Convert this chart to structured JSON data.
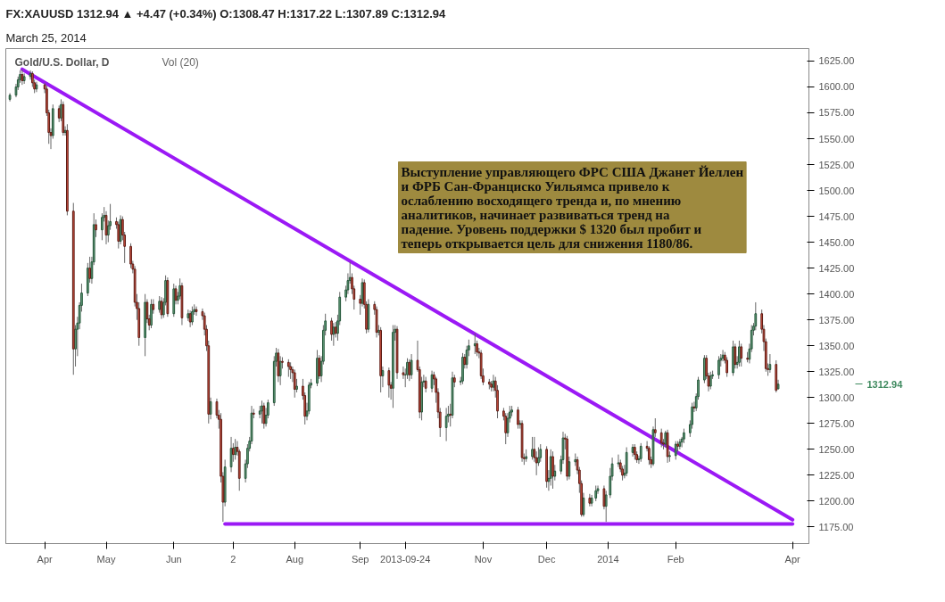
{
  "chart_data": {
    "type": "candlestick",
    "title": "Gold/U.S. Dollar, D",
    "subtitle": "March 25, 2014",
    "annotations": [
      "FX:XAUUSD  1312.94 ▲ +4.47 (+0.34%)  O:1308.47  H:1317.22  L:1307.89  C:1312.94",
      "Vol (20)",
      "Выступление управляющего ФРС США Джанет Йеллен и ФРБ Сан-Франциско Уильямса привело к ослаблению восходящего тренда и, по мнению аналитиков, начинает развиваться тренд на падение. Уровень поддержки $ 1320 был пробит и теперь открывается цель для снижения 1180/86.",
      "1312.94"
    ],
    "x": [
      "2013-03-15",
      "2013-03-18",
      "2013-03-19",
      "2013-03-20",
      "2013-03-21",
      "2013-03-22",
      "2013-03-25",
      "2013-03-26",
      "2013-03-27",
      "2013-03-28",
      "2013-04-01",
      "2013-04-02",
      "2013-04-03",
      "2013-04-04",
      "2013-04-05",
      "2013-04-08",
      "2013-04-09",
      "2013-04-10",
      "2013-04-11",
      "2013-04-12",
      "2013-04-15",
      "2013-04-16",
      "2013-04-17",
      "2013-04-18",
      "2013-04-19",
      "2013-04-22",
      "2013-04-23",
      "2013-04-24",
      "2013-04-25",
      "2013-04-26",
      "2013-04-29",
      "2013-04-30",
      "2013-05-01",
      "2013-05-02",
      "2013-05-03",
      "2013-05-06",
      "2013-05-07",
      "2013-05-08",
      "2013-05-09",
      "2013-05-10",
      "2013-05-13",
      "2013-05-14",
      "2013-05-15",
      "2013-05-16",
      "2013-05-17",
      "2013-05-20",
      "2013-05-21",
      "2013-05-22",
      "2013-05-23",
      "2013-05-24",
      "2013-05-27",
      "2013-05-28",
      "2013-05-29",
      "2013-05-30",
      "2013-05-31",
      "2013-06-03",
      "2013-06-04",
      "2013-06-05",
      "2013-06-06",
      "2013-06-07",
      "2013-06-10",
      "2013-06-11",
      "2013-06-12",
      "2013-06-13",
      "2013-06-14",
      "2013-06-17",
      "2013-06-18",
      "2013-06-19",
      "2013-06-20",
      "2013-06-21",
      "2013-06-24",
      "2013-06-25",
      "2013-06-26",
      "2013-06-27",
      "2013-06-28",
      "2013-07-01",
      "2013-07-02",
      "2013-07-03",
      "2013-07-04",
      "2013-07-05",
      "2013-07-08",
      "2013-07-09",
      "2013-07-10",
      "2013-07-11",
      "2013-07-12",
      "2013-07-15",
      "2013-07-16",
      "2013-07-17",
      "2013-07-18",
      "2013-07-19",
      "2013-07-22",
      "2013-07-23",
      "2013-07-24",
      "2013-07-25",
      "2013-07-26",
      "2013-07-29",
      "2013-07-30",
      "2013-07-31",
      "2013-08-01",
      "2013-08-02",
      "2013-08-05",
      "2013-08-06",
      "2013-08-07",
      "2013-08-08",
      "2013-08-09",
      "2013-08-12",
      "2013-08-13",
      "2013-08-14",
      "2013-08-15",
      "2013-08-16",
      "2013-08-19",
      "2013-08-20",
      "2013-08-21",
      "2013-08-22",
      "2013-08-23",
      "2013-08-26",
      "2013-08-27",
      "2013-08-28",
      "2013-08-29",
      "2013-08-30",
      "2013-09-02",
      "2013-09-03",
      "2013-09-04",
      "2013-09-05",
      "2013-09-06",
      "2013-09-09",
      "2013-09-10",
      "2013-09-11",
      "2013-09-12",
      "2013-09-13",
      "2013-09-16",
      "2013-09-17",
      "2013-09-18",
      "2013-09-19",
      "2013-09-20",
      "2013-09-23",
      "2013-09-24",
      "2013-09-25",
      "2013-09-26",
      "2013-09-27",
      "2013-09-30",
      "2013-10-01",
      "2013-10-02",
      "2013-10-03",
      "2013-10-04",
      "2013-10-07",
      "2013-10-08",
      "2013-10-09",
      "2013-10-10",
      "2013-10-11",
      "2013-10-14",
      "2013-10-15",
      "2013-10-16",
      "2013-10-17",
      "2013-10-18",
      "2013-10-21",
      "2013-10-22",
      "2013-10-23",
      "2013-10-24",
      "2013-10-25",
      "2013-10-28",
      "2013-10-29",
      "2013-10-30",
      "2013-10-31",
      "2013-11-01",
      "2013-11-04",
      "2013-11-05",
      "2013-11-06",
      "2013-11-07",
      "2013-11-08",
      "2013-11-11",
      "2013-11-12",
      "2013-11-13",
      "2013-11-14",
      "2013-11-15",
      "2013-11-18",
      "2013-11-19",
      "2013-11-20",
      "2013-11-21",
      "2013-11-22",
      "2013-11-25",
      "2013-11-26",
      "2013-11-27",
      "2013-11-28",
      "2013-11-29",
      "2013-12-02",
      "2013-12-03",
      "2013-12-04",
      "2013-12-05",
      "2013-12-06",
      "2013-12-09",
      "2013-12-10",
      "2013-12-11",
      "2013-12-12",
      "2013-12-13",
      "2013-12-16",
      "2013-12-17",
      "2013-12-18",
      "2013-12-19",
      "2013-12-20",
      "2013-12-23",
      "2013-12-24",
      "2013-12-26",
      "2013-12-27",
      "2013-12-30",
      "2013-12-31",
      "2014-01-02",
      "2014-01-03",
      "2014-01-06",
      "2014-01-07",
      "2014-01-08",
      "2014-01-09",
      "2014-01-10",
      "2014-01-13",
      "2014-01-14",
      "2014-01-15",
      "2014-01-16",
      "2014-01-17",
      "2014-01-20",
      "2014-01-21",
      "2014-01-22",
      "2014-01-23",
      "2014-01-24",
      "2014-01-27",
      "2014-01-28",
      "2014-01-29",
      "2014-01-30",
      "2014-01-31",
      "2014-02-03",
      "2014-02-04",
      "2014-02-05",
      "2014-02-06",
      "2014-02-07",
      "2014-02-10",
      "2014-02-11",
      "2014-02-12",
      "2014-02-13",
      "2014-02-14",
      "2014-02-17",
      "2014-02-18",
      "2014-02-19",
      "2014-02-20",
      "2014-02-21",
      "2014-02-24",
      "2014-02-25",
      "2014-02-26",
      "2014-02-27",
      "2014-02-28",
      "2014-03-03",
      "2014-03-04",
      "2014-03-05",
      "2014-03-06",
      "2014-03-07",
      "2014-03-10",
      "2014-03-11",
      "2014-03-12",
      "2014-03-13",
      "2014-03-14",
      "2014-03-17",
      "2014-03-18",
      "2014-03-19",
      "2014-03-20",
      "2014-03-21",
      "2014-03-24",
      "2014-03-25"
    ],
    "ohlc": [
      [
        1588,
        1594,
        1586,
        1592
      ],
      [
        1592,
        1603,
        1590,
        1600
      ],
      [
        1600,
        1610,
        1597,
        1607
      ],
      [
        1607,
        1616,
        1604,
        1612
      ],
      [
        1612,
        1617,
        1602,
        1606
      ],
      [
        1606,
        1613,
        1603,
        1610
      ],
      [
        1610,
        1616,
        1607,
        1613
      ],
      [
        1613,
        1615,
        1600,
        1604
      ],
      [
        1604,
        1607,
        1594,
        1598
      ],
      [
        1598,
        1605,
        1595,
        1602
      ],
      [
        1602,
        1604,
        1594,
        1598
      ],
      [
        1598,
        1601,
        1572,
        1575
      ],
      [
        1575,
        1578,
        1545,
        1556
      ],
      [
        1556,
        1560,
        1540,
        1553
      ],
      [
        1553,
        1583,
        1550,
        1579
      ],
      [
        1579,
        1582,
        1566,
        1570
      ],
      [
        1570,
        1588,
        1567,
        1583
      ],
      [
        1583,
        1586,
        1553,
        1556
      ],
      [
        1556,
        1562,
        1553,
        1558
      ],
      [
        1558,
        1564,
        1476,
        1480
      ],
      [
        1480,
        1488,
        1322,
        1347
      ],
      [
        1347,
        1370,
        1330,
        1366
      ],
      [
        1366,
        1378,
        1340,
        1372
      ],
      [
        1372,
        1392,
        1366,
        1389
      ],
      [
        1389,
        1410,
        1383,
        1401
      ],
      [
        1401,
        1430,
        1398,
        1425
      ],
      [
        1425,
        1436,
        1411,
        1415
      ],
      [
        1415,
        1436,
        1410,
        1431
      ],
      [
        1431,
        1478,
        1428,
        1467
      ],
      [
        1467,
        1472,
        1455,
        1462
      ],
      [
        1462,
        1478,
        1452,
        1474
      ],
      [
        1474,
        1484,
        1470,
        1476
      ],
      [
        1476,
        1480,
        1448,
        1457
      ],
      [
        1457,
        1471,
        1450,
        1466
      ],
      [
        1466,
        1487,
        1462,
        1470
      ],
      [
        1470,
        1474,
        1463,
        1467
      ],
      [
        1467,
        1470,
        1444,
        1451
      ],
      [
        1451,
        1476,
        1448,
        1472
      ],
      [
        1472,
        1475,
        1452,
        1457
      ],
      [
        1457,
        1460,
        1430,
        1446
      ],
      [
        1446,
        1449,
        1425,
        1429
      ],
      [
        1429,
        1432,
        1420,
        1424
      ],
      [
        1424,
        1427,
        1388,
        1392
      ],
      [
        1392,
        1400,
        1375,
        1386
      ],
      [
        1386,
        1392,
        1350,
        1358
      ],
      [
        1358,
        1400,
        1340,
        1392
      ],
      [
        1392,
        1395,
        1372,
        1376
      ],
      [
        1376,
        1380,
        1365,
        1370
      ],
      [
        1370,
        1395,
        1367,
        1390
      ],
      [
        1390,
        1395,
        1381,
        1385
      ],
      [
        1385,
        1398,
        1382,
        1393
      ],
      [
        1393,
        1397,
        1376,
        1380
      ],
      [
        1380,
        1396,
        1377,
        1392
      ],
      [
        1392,
        1418,
        1389,
        1413
      ],
      [
        1413,
        1416,
        1378,
        1381
      ],
      [
        1381,
        1410,
        1378,
        1405
      ],
      [
        1405,
        1408,
        1390,
        1394
      ],
      [
        1394,
        1402,
        1390,
        1398
      ],
      [
        1398,
        1415,
        1395,
        1408
      ],
      [
        1408,
        1411,
        1370,
        1377
      ],
      [
        1377,
        1385,
        1374,
        1381
      ],
      [
        1381,
        1384,
        1368,
        1373
      ],
      [
        1373,
        1388,
        1370,
        1383
      ],
      [
        1383,
        1390,
        1380,
        1385
      ],
      [
        1385,
        1388,
        1379,
        1383
      ],
      [
        1383,
        1386,
        1375,
        1379
      ],
      [
        1379,
        1382,
        1360,
        1366
      ],
      [
        1366,
        1370,
        1345,
        1350
      ],
      [
        1350,
        1355,
        1275,
        1284
      ],
      [
        1284,
        1300,
        1279,
        1296
      ],
      [
        1296,
        1299,
        1280,
        1283
      ],
      [
        1283,
        1288,
        1270,
        1279
      ],
      [
        1279,
        1285,
        1218,
        1224
      ],
      [
        1224,
        1228,
        1180,
        1199
      ],
      [
        1199,
        1240,
        1195,
        1233
      ],
      [
        1233,
        1262,
        1228,
        1251
      ],
      [
        1251,
        1256,
        1238,
        1245
      ],
      [
        1245,
        1260,
        1240,
        1252
      ],
      [
        1252,
        1258,
        1244,
        1248
      ],
      [
        1248,
        1250,
        1210,
        1222
      ],
      [
        1222,
        1240,
        1218,
        1236
      ],
      [
        1236,
        1255,
        1232,
        1251
      ],
      [
        1251,
        1262,
        1248,
        1258
      ],
      [
        1258,
        1292,
        1255,
        1285
      ],
      [
        1285,
        1289,
        1280,
        1284
      ],
      [
        1284,
        1292,
        1280,
        1287
      ],
      [
        1287,
        1297,
        1275,
        1292
      ],
      [
        1292,
        1295,
        1270,
        1275
      ],
      [
        1275,
        1290,
        1272,
        1283
      ],
      [
        1283,
        1298,
        1280,
        1295
      ],
      [
        1295,
        1340,
        1292,
        1335
      ],
      [
        1335,
        1348,
        1330,
        1343
      ],
      [
        1343,
        1347,
        1315,
        1321
      ],
      [
        1321,
        1340,
        1312,
        1335
      ],
      [
        1335,
        1339,
        1328,
        1334
      ],
      [
        1334,
        1337,
        1320,
        1330
      ],
      [
        1330,
        1334,
        1318,
        1327
      ],
      [
        1327,
        1330,
        1315,
        1324
      ],
      [
        1324,
        1327,
        1300,
        1308
      ],
      [
        1308,
        1318,
        1305,
        1311
      ],
      [
        1311,
        1318,
        1298,
        1302
      ],
      [
        1302,
        1305,
        1274,
        1282
      ],
      [
        1282,
        1295,
        1278,
        1287
      ],
      [
        1287,
        1315,
        1284,
        1312
      ],
      [
        1312,
        1318,
        1309,
        1314
      ],
      [
        1314,
        1346,
        1311,
        1338
      ],
      [
        1338,
        1341,
        1318,
        1321
      ],
      [
        1321,
        1340,
        1315,
        1335
      ],
      [
        1335,
        1370,
        1332,
        1365
      ],
      [
        1365,
        1381,
        1360,
        1374
      ],
      [
        1374,
        1377,
        1355,
        1361
      ],
      [
        1361,
        1372,
        1350,
        1368
      ],
      [
        1368,
        1373,
        1358,
        1362
      ],
      [
        1362,
        1380,
        1355,
        1374
      ],
      [
        1374,
        1402,
        1370,
        1397
      ],
      [
        1397,
        1408,
        1393,
        1404
      ],
      [
        1404,
        1420,
        1400,
        1413
      ],
      [
        1413,
        1431,
        1410,
        1416
      ],
      [
        1416,
        1420,
        1400,
        1405
      ],
      [
        1405,
        1408,
        1385,
        1395
      ],
      [
        1395,
        1399,
        1380,
        1391
      ],
      [
        1391,
        1415,
        1388,
        1411
      ],
      [
        1411,
        1414,
        1386,
        1390
      ],
      [
        1390,
        1393,
        1362,
        1366
      ],
      [
        1366,
        1395,
        1363,
        1390
      ],
      [
        1390,
        1393,
        1380,
        1385
      ],
      [
        1385,
        1388,
        1358,
        1363
      ],
      [
        1363,
        1370,
        1360,
        1365
      ],
      [
        1365,
        1368,
        1305,
        1321
      ],
      [
        1321,
        1330,
        1310,
        1326
      ],
      [
        1326,
        1329,
        1300,
        1312
      ],
      [
        1312,
        1315,
        1298,
        1309
      ],
      [
        1309,
        1370,
        1290,
        1363
      ],
      [
        1363,
        1370,
        1355,
        1366
      ],
      [
        1366,
        1369,
        1318,
        1324
      ],
      [
        1324,
        1330,
        1318,
        1322
      ],
      [
        1322,
        1328,
        1310,
        1322
      ],
      [
        1322,
        1338,
        1318,
        1334
      ],
      [
        1334,
        1337,
        1316,
        1322
      ],
      [
        1322,
        1342,
        1318,
        1336
      ],
      [
        1336,
        1355,
        1325,
        1327
      ],
      [
        1327,
        1330,
        1280,
        1286
      ],
      [
        1286,
        1320,
        1278,
        1315
      ],
      [
        1315,
        1322,
        1310,
        1316
      ],
      [
        1316,
        1320,
        1305,
        1309
      ],
      [
        1309,
        1326,
        1305,
        1322
      ],
      [
        1322,
        1325,
        1312,
        1318
      ],
      [
        1318,
        1320,
        1295,
        1305
      ],
      [
        1305,
        1309,
        1280,
        1286
      ],
      [
        1286,
        1290,
        1262,
        1271
      ],
      [
        1271,
        1290,
        1258,
        1282
      ],
      [
        1282,
        1292,
        1276,
        1284
      ],
      [
        1284,
        1294,
        1272,
        1283
      ],
      [
        1283,
        1325,
        1280,
        1319
      ],
      [
        1319,
        1322,
        1310,
        1315
      ],
      [
        1315,
        1320,
        1312,
        1316
      ],
      [
        1316,
        1343,
        1313,
        1339
      ],
      [
        1339,
        1342,
        1328,
        1332
      ],
      [
        1332,
        1350,
        1328,
        1346
      ],
      [
        1346,
        1356,
        1340,
        1350
      ],
      [
        1350,
        1362,
        1342,
        1352
      ],
      [
        1352,
        1355,
        1340,
        1344
      ],
      [
        1344,
        1348,
        1338,
        1343
      ],
      [
        1343,
        1346,
        1318,
        1321
      ],
      [
        1321,
        1328,
        1312,
        1315
      ],
      [
        1315,
        1318,
        1308,
        1313
      ],
      [
        1313,
        1316,
        1306,
        1310
      ],
      [
        1310,
        1322,
        1306,
        1316
      ],
      [
        1316,
        1320,
        1300,
        1307
      ],
      [
        1307,
        1312,
        1280,
        1287
      ],
      [
        1287,
        1290,
        1278,
        1282
      ],
      [
        1282,
        1285,
        1255,
        1266
      ],
      [
        1266,
        1285,
        1262,
        1280
      ],
      [
        1280,
        1292,
        1276,
        1286
      ],
      [
        1286,
        1292,
        1282,
        1288
      ],
      [
        1288,
        1291,
        1270,
        1274
      ],
      [
        1274,
        1278,
        1270,
        1275
      ],
      [
        1275,
        1278,
        1238,
        1242
      ],
      [
        1242,
        1246,
        1235,
        1241
      ],
      [
        1241,
        1250,
        1238,
        1243
      ],
      [
        1243,
        1262,
        1240,
        1250
      ],
      [
        1250,
        1262,
        1238,
        1242
      ],
      [
        1242,
        1248,
        1225,
        1237
      ],
      [
        1237,
        1252,
        1234,
        1242
      ],
      [
        1242,
        1255,
        1238,
        1250
      ],
      [
        1250,
        1253,
        1213,
        1219
      ],
      [
        1219,
        1230,
        1210,
        1222
      ],
      [
        1222,
        1250,
        1215,
        1243
      ],
      [
        1243,
        1248,
        1212,
        1224
      ],
      [
        1224,
        1235,
        1220,
        1229
      ],
      [
        1229,
        1244,
        1226,
        1240
      ],
      [
        1240,
        1267,
        1236,
        1261
      ],
      [
        1261,
        1265,
        1250,
        1260
      ],
      [
        1260,
        1263,
        1220,
        1224
      ],
      [
        1224,
        1243,
        1221,
        1238
      ],
      [
        1238,
        1246,
        1234,
        1240
      ],
      [
        1240,
        1243,
        1226,
        1230
      ],
      [
        1230,
        1233,
        1208,
        1217
      ],
      [
        1217,
        1220,
        1185,
        1187
      ],
      [
        1187,
        1208,
        1185,
        1203
      ],
      [
        1203,
        1207,
        1195,
        1198
      ],
      [
        1198,
        1206,
        1195,
        1203
      ],
      [
        1203,
        1215,
        1200,
        1210
      ],
      [
        1210,
        1215,
        1207,
        1212
      ],
      [
        1212,
        1215,
        1192,
        1195
      ],
      [
        1195,
        1210,
        1180,
        1206
      ],
      [
        1206,
        1232,
        1203,
        1224
      ],
      [
        1224,
        1242,
        1220,
        1236
      ],
      [
        1236,
        1245,
        1233,
        1237
      ],
      [
        1237,
        1240,
        1228,
        1231
      ],
      [
        1231,
        1234,
        1220,
        1225
      ],
      [
        1225,
        1235,
        1222,
        1227
      ],
      [
        1227,
        1252,
        1224,
        1247
      ],
      [
        1247,
        1255,
        1243,
        1252
      ],
      [
        1252,
        1255,
        1240,
        1245
      ],
      [
        1245,
        1248,
        1237,
        1240
      ],
      [
        1240,
        1244,
        1236,
        1241
      ],
      [
        1241,
        1256,
        1238,
        1253
      ],
      [
        1253,
        1258,
        1248,
        1251
      ],
      [
        1251,
        1253,
        1235,
        1240
      ],
      [
        1240,
        1243,
        1232,
        1236
      ],
      [
        1236,
        1272,
        1234,
        1269
      ],
      [
        1269,
        1280,
        1262,
        1266
      ],
      [
        1266,
        1270,
        1252,
        1256
      ],
      [
        1256,
        1260,
        1250,
        1255
      ],
      [
        1255,
        1268,
        1252,
        1266
      ],
      [
        1266,
        1269,
        1237,
        1243
      ],
      [
        1243,
        1248,
        1238,
        1244
      ],
      [
        1244,
        1258,
        1240,
        1255
      ],
      [
        1255,
        1258,
        1248,
        1253
      ],
      [
        1253,
        1260,
        1250,
        1257
      ],
      [
        1257,
        1262,
        1252,
        1260
      ],
      [
        1260,
        1270,
        1256,
        1266
      ],
      [
        1266,
        1278,
        1262,
        1274
      ],
      [
        1274,
        1295,
        1270,
        1291
      ],
      [
        1291,
        1296,
        1286,
        1290
      ],
      [
        1290,
        1304,
        1287,
        1301
      ],
      [
        1301,
        1320,
        1298,
        1317
      ],
      [
        1317,
        1341,
        1314,
        1338
      ],
      [
        1338,
        1341,
        1318,
        1321
      ],
      [
        1321,
        1324,
        1306,
        1311
      ],
      [
        1311,
        1325,
        1308,
        1321
      ],
      [
        1321,
        1326,
        1318,
        1322
      ],
      [
        1322,
        1340,
        1318,
        1336
      ],
      [
        1336,
        1342,
        1330,
        1338
      ],
      [
        1338,
        1346,
        1335,
        1341
      ],
      [
        1341,
        1344,
        1333,
        1336
      ],
      [
        1336,
        1339,
        1320,
        1324
      ],
      [
        1324,
        1355,
        1321,
        1349
      ],
      [
        1349,
        1352,
        1328,
        1332
      ],
      [
        1332,
        1340,
        1328,
        1334
      ],
      [
        1334,
        1355,
        1330,
        1349
      ],
      [
        1349,
        1352,
        1330,
        1338
      ],
      [
        1338,
        1344,
        1334,
        1337
      ],
      [
        1337,
        1352,
        1333,
        1347
      ],
      [
        1347,
        1370,
        1344,
        1365
      ],
      [
        1365,
        1372,
        1360,
        1369
      ],
      [
        1369,
        1392,
        1365,
        1381
      ],
      [
        1381,
        1385,
        1362,
        1366
      ],
      [
        1366,
        1370,
        1345,
        1354
      ],
      [
        1354,
        1357,
        1325,
        1328
      ],
      [
        1328,
        1333,
        1321,
        1327
      ],
      [
        1327,
        1342,
        1324,
        1332
      ],
      [
        1332,
        1336,
        1305,
        1307
      ],
      [
        1308.47,
        1317.22,
        1307.89,
        1312.94
      ]
    ],
    "series": [
      {
        "type": "line",
        "color": "#9b19f5",
        "x": [
          "2013-03-21",
          "2014-04-01"
        ],
        "values": [
          1617,
          1182
        ]
      },
      {
        "type": "line",
        "color": "#9b19f5",
        "x": [
          "2013-06-28",
          "2014-04-01"
        ],
        "values": [
          1178,
          1178
        ]
      }
    ],
    "xlim": [
      "2013-03-13",
      "2014-04-09"
    ],
    "xticks": [
      {
        "value": "2013-04-01",
        "label": "Apr"
      },
      {
        "value": "2013-05-01",
        "label": "May"
      },
      {
        "value": "2013-06-03",
        "label": "Jun"
      },
      {
        "value": "2013-07-02",
        "label": "2"
      },
      {
        "value": "2013-08-01",
        "label": "Aug"
      },
      {
        "value": "2013-09-02",
        "label": "Sep"
      },
      {
        "value": "2013-09-24",
        "label": "2013-09-24"
      },
      {
        "value": "2013-11-01",
        "label": "Nov"
      },
      {
        "value": "2013-12-02",
        "label": "Dec"
      },
      {
        "value": "2014-01-01",
        "label": "2014"
      },
      {
        "value": "2014-02-03",
        "label": "Feb"
      },
      {
        "value": "2014-04-01",
        "label": "Apr"
      }
    ],
    "ylim": [
      1159,
      1637
    ],
    "yticks": [
      {
        "value": 1175,
        "label": "1175.00"
      },
      {
        "value": 1200,
        "label": "1200.00"
      },
      {
        "value": 1225,
        "label": "1225.00"
      },
      {
        "value": 1250,
        "label": "1250.00"
      },
      {
        "value": 1275,
        "label": "1275.00"
      },
      {
        "value": 1300,
        "label": "1300.00"
      },
      {
        "value": 1325,
        "label": "1325.00"
      },
      {
        "value": 1350,
        "label": "1350.00"
      },
      {
        "value": 1375,
        "label": "1375.00"
      },
      {
        "value": 1400,
        "label": "1400.00"
      },
      {
        "value": 1425,
        "label": "1425.00"
      },
      {
        "value": 1450,
        "label": "1450.00"
      },
      {
        "value": 1475,
        "label": "1475.00"
      },
      {
        "value": 1500,
        "label": "1500.00"
      },
      {
        "value": 1525,
        "label": "1525.00"
      },
      {
        "value": 1550,
        "label": "1550.00"
      },
      {
        "value": 1575,
        "label": "1575.00"
      },
      {
        "value": 1600,
        "label": "1600.00"
      },
      {
        "value": 1625,
        "label": "1625.00"
      }
    ]
  }
}
